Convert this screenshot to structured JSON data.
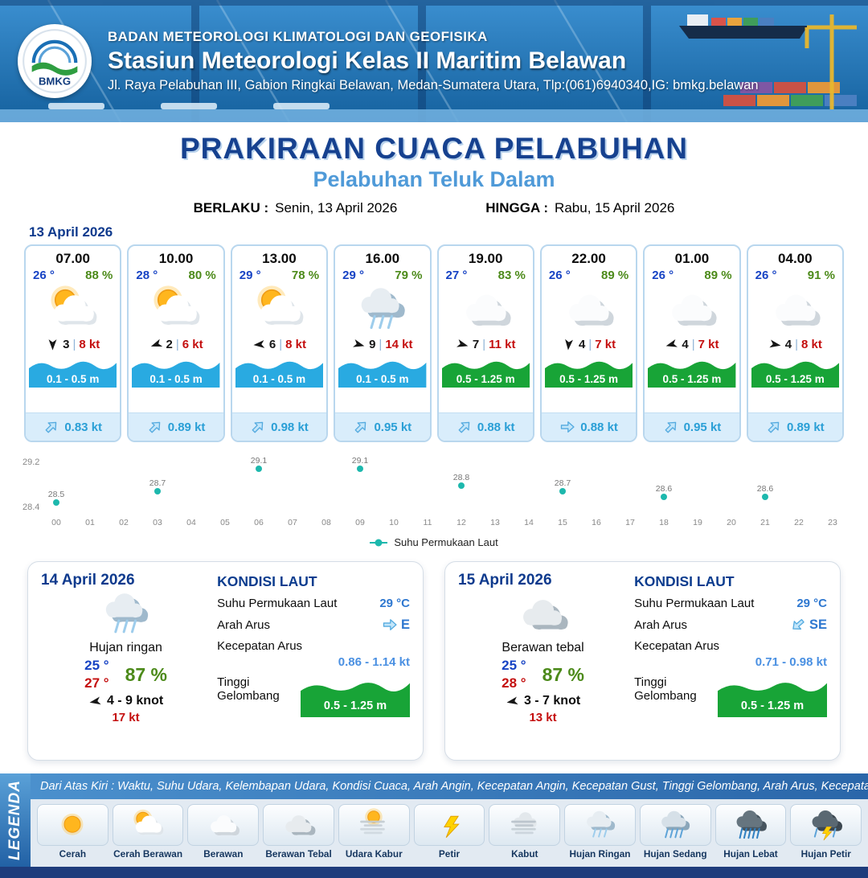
{
  "ui": {
    "sep": "|"
  },
  "header": {
    "logo_text": "BMKG",
    "org": "BADAN METEOROLOGI KLIMATOLOGI DAN GEOFISIKA",
    "station": "Stasiun Meteorologi Kelas II Maritim Belawan",
    "address": "Jl. Raya Pelabuhan III, Gabion Ringkai Belawan, Medan-Sumatera Utara, Tlp:(061)6940340,IG: bmkg.belawan"
  },
  "title": {
    "main": "PRAKIRAAN CUACA PELABUHAN",
    "subtitle": "Pelabuhan Teluk Dalam",
    "berlaku_label": "BERLAKU :",
    "berlaku_value": "Senin, 13 April 2026",
    "hingga_label": "HINGGA :",
    "hingga_value": "Rabu, 15 April 2026"
  },
  "hourly": {
    "date": "13 April 2026",
    "cards": [
      {
        "time": "07.00",
        "temp": "26 °",
        "humidity": "88 %",
        "icon": "cerah-berawan",
        "wind_speed": "3",
        "gust": "8 kt",
        "wind_rot": 180,
        "wave": "0.1 - 0.5 m",
        "wave_color": "#29aae1",
        "current": "0.83 kt",
        "current_rot": -45
      },
      {
        "time": "10.00",
        "temp": "28 °",
        "humidity": "80 %",
        "icon": "cerah-berawan",
        "wind_speed": "2",
        "gust": "6 kt",
        "wind_rot": 250,
        "wave": "0.1 - 0.5 m",
        "wave_color": "#29aae1",
        "current": "0.89 kt",
        "current_rot": -45
      },
      {
        "time": "13.00",
        "temp": "29 °",
        "humidity": "78 %",
        "icon": "cerah-berawan",
        "wind_speed": "6",
        "gust": "8 kt",
        "wind_rot": 265,
        "wave": "0.1 - 0.5 m",
        "wave_color": "#29aae1",
        "current": "0.98 kt",
        "current_rot": -45
      },
      {
        "time": "16.00",
        "temp": "29 °",
        "humidity": "79 %",
        "icon": "hujan-ringan",
        "wind_speed": "9",
        "gust": "14 kt",
        "wind_rot": 105,
        "wave": "0.1 - 0.5 m",
        "wave_color": "#29aae1",
        "current": "0.95 kt",
        "current_rot": -45
      },
      {
        "time": "19.00",
        "temp": "27 °",
        "humidity": "83 %",
        "icon": "berawan",
        "wind_speed": "7",
        "gust": "11 kt",
        "wind_rot": 105,
        "wave": "0.5 - 1.25 m",
        "wave_color": "#18a437",
        "current": "0.88 kt",
        "current_rot": -45
      },
      {
        "time": "22.00",
        "temp": "26 °",
        "humidity": "89 %",
        "icon": "berawan",
        "wind_speed": "4",
        "gust": "7 kt",
        "wind_rot": 185,
        "wave": "0.5 - 1.25 m",
        "wave_color": "#18a437",
        "current": "0.88 kt",
        "current_rot": 0
      },
      {
        "time": "01.00",
        "temp": "26 °",
        "humidity": "89 %",
        "icon": "berawan",
        "wind_speed": "4",
        "gust": "7 kt",
        "wind_rot": 255,
        "wave": "0.5 - 1.25 m",
        "wave_color": "#18a437",
        "current": "0.95 kt",
        "current_rot": -45
      },
      {
        "time": "04.00",
        "temp": "26 °",
        "humidity": "91 %",
        "icon": "berawan",
        "wind_speed": "4",
        "gust": "8 kt",
        "wind_rot": 100,
        "wave": "0.5 - 1.25 m",
        "wave_color": "#18a437",
        "current": "0.89 kt",
        "current_rot": -45
      }
    ]
  },
  "chart_data": {
    "type": "scatter",
    "series_name": "Suhu Permukaan Laut",
    "legend": "Suhu Permukaan Laut",
    "x": [
      0,
      3,
      6,
      9,
      12,
      15,
      18,
      21
    ],
    "values": [
      28.5,
      28.7,
      29.1,
      29.1,
      28.8,
      28.7,
      28.6,
      28.6
    ],
    "x_ticks": [
      "00",
      "01",
      "02",
      "03",
      "04",
      "05",
      "06",
      "07",
      "08",
      "09",
      "10",
      "11",
      "12",
      "13",
      "14",
      "15",
      "16",
      "17",
      "18",
      "19",
      "20",
      "21",
      "22",
      "23"
    ],
    "ylim": [
      28.4,
      29.2
    ],
    "y_ticks": [
      "29.2",
      "28.4"
    ],
    "xlabel": "",
    "ylabel": "",
    "dot_color": "#1db8ad",
    "grid": false,
    "legend_position": "bottom"
  },
  "daily": [
    {
      "date": "14 April 2026",
      "icon": "hujan-ringan",
      "condition": "Hujan ringan",
      "temp_min": "25 °",
      "temp_max": "27 °",
      "humidity": "87 %",
      "wind": "4 - 9 knot",
      "gust": "17 kt",
      "wind_rot": 260,
      "sea_title": "KONDISI LAUT",
      "sst_label": "Suhu Permukaan Laut",
      "sst": "29 °C",
      "arus_label": "Arah Arus",
      "arus_dir": "E",
      "arus_rot": 0,
      "kec_label": "Kecepatan Arus",
      "kec": "0.86 - 1.14 kt",
      "gel_label": "Tinggi Gelombang",
      "gel": "0.5 - 1.25 m",
      "gel_color": "#18a437"
    },
    {
      "date": "15 April 2026",
      "icon": "berawan-tebal",
      "condition": "Berawan tebal",
      "temp_min": "25 °",
      "temp_max": "28 °",
      "humidity": "87 %",
      "wind": "3 - 7 knot",
      "gust": "13 kt",
      "wind_rot": 260,
      "sea_title": "KONDISI LAUT",
      "sst_label": "Suhu Permukaan Laut",
      "sst": "29 °C",
      "arus_label": "Arah Arus",
      "arus_dir": "SE",
      "arus_rot": 140,
      "kec_label": "Kecepatan Arus",
      "kec": "0.71 - 0.98 kt",
      "gel_label": "Tinggi Gelombang",
      "gel": "0.5 - 1.25 m",
      "gel_color": "#18a437"
    }
  ],
  "legend": {
    "vertical_label": "LEGENDA",
    "description": "Dari Atas Kiri : Waktu, Suhu Udara, Kelembapan Udara, Kondisi Cuaca, Arah Angin, Kecepatan Angin, Kecepatan Gust, Tinggi Gelombang, Arah Arus, Kecepatan Arus",
    "items": [
      {
        "label": "Cerah",
        "icon": "cerah"
      },
      {
        "label": "Cerah Berawan",
        "icon": "cerah-berawan"
      },
      {
        "label": "Berawan",
        "icon": "berawan"
      },
      {
        "label": "Berawan Tebal",
        "icon": "berawan-tebal"
      },
      {
        "label": "Udara Kabur",
        "icon": "udara-kabur"
      },
      {
        "label": "Petir",
        "icon": "petir"
      },
      {
        "label": "Kabut",
        "icon": "kabut"
      },
      {
        "label": "Hujan Ringan",
        "icon": "hujan-ringan"
      },
      {
        "label": "Hujan Sedang",
        "icon": "hujan-sedang"
      },
      {
        "label": "Hujan Lebat",
        "icon": "hujan-lebat"
      },
      {
        "label": "Hujan Petir",
        "icon": "hujan-petir"
      }
    ]
  }
}
